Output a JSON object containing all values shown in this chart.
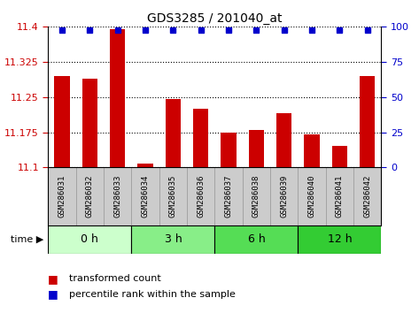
{
  "title": "GDS3285 / 201040_at",
  "samples": [
    "GSM286031",
    "GSM286032",
    "GSM286033",
    "GSM286034",
    "GSM286035",
    "GSM286036",
    "GSM286037",
    "GSM286038",
    "GSM286039",
    "GSM286040",
    "GSM286041",
    "GSM286042"
  ],
  "bar_values": [
    11.295,
    11.29,
    11.395,
    11.108,
    11.245,
    11.225,
    11.175,
    11.18,
    11.215,
    11.17,
    11.145,
    11.295
  ],
  "bar_color": "#cc0000",
  "percentile_color": "#0000cc",
  "bar_baseline": 11.1,
  "ylim_left": [
    11.1,
    11.4
  ],
  "ylim_right": [
    0,
    100
  ],
  "yticks_left": [
    11.1,
    11.175,
    11.25,
    11.325,
    11.4
  ],
  "yticks_right": [
    0,
    25,
    50,
    75,
    100
  ],
  "ytick_labels_left": [
    "11.1",
    "11.175",
    "11.25",
    "11.325",
    "11.4"
  ],
  "ytick_labels_right": [
    "0",
    "25",
    "50",
    "75",
    "100"
  ],
  "time_groups": [
    {
      "label": "0 h",
      "start": 0,
      "end": 3,
      "color": "#ccffcc"
    },
    {
      "label": "3 h",
      "start": 3,
      "end": 6,
      "color": "#88ee88"
    },
    {
      "label": "6 h",
      "start": 6,
      "end": 9,
      "color": "#55dd55"
    },
    {
      "label": "12 h",
      "start": 9,
      "end": 12,
      "color": "#33cc33"
    }
  ],
  "legend_bar_label": "transformed count",
  "legend_pct_label": "percentile rank within the sample",
  "background_color": "#ffffff",
  "label_box_color": "#cccccc",
  "label_box_edge": "#888888",
  "percentile_marker_size": 4.5,
  "bar_width": 0.55
}
